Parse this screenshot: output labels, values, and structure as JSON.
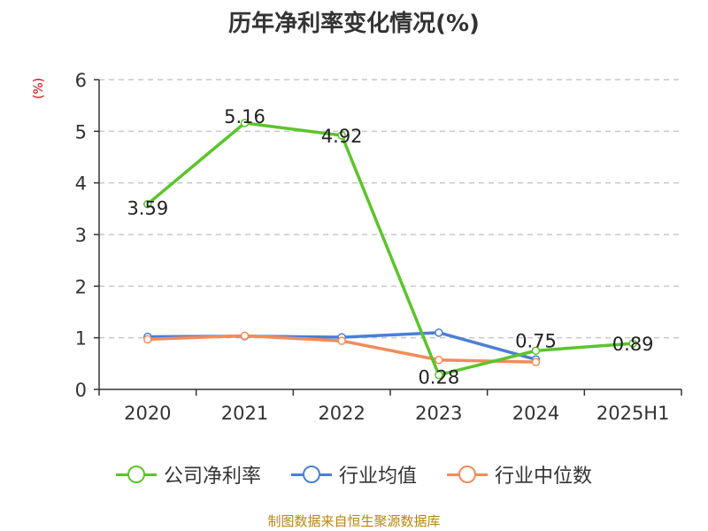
{
  "title": "历年净利率变化情况(%)",
  "y_unit": "(%)",
  "source": "制图数据来自恒生聚源数据库",
  "chart_data": {
    "type": "line",
    "title": "历年净利率变化情况(%)",
    "xlabel": "",
    "ylabel": "(%)",
    "categories": [
      "2020",
      "2021",
      "2022",
      "2023",
      "2024",
      "2025H1"
    ],
    "ylim": [
      0,
      6
    ],
    "yticks": [
      0,
      1,
      2,
      3,
      4,
      5,
      6
    ],
    "grid": true,
    "legend_position": "bottom",
    "series": [
      {
        "name": "公司净利率",
        "color": "#5cc42b",
        "values": [
          3.59,
          5.16,
          4.92,
          0.28,
          0.75,
          0.89
        ],
        "labels": [
          "3.59",
          "5.16",
          "4.92",
          "0.28",
          "0.75",
          "0.89"
        ]
      },
      {
        "name": "行业均值",
        "color": "#4a7fd8",
        "values": [
          1.02,
          1.03,
          1.01,
          1.1,
          0.58,
          null
        ]
      },
      {
        "name": "行业中位数",
        "color": "#f38b58",
        "values": [
          0.97,
          1.04,
          0.94,
          0.57,
          0.53,
          null
        ]
      }
    ]
  }
}
